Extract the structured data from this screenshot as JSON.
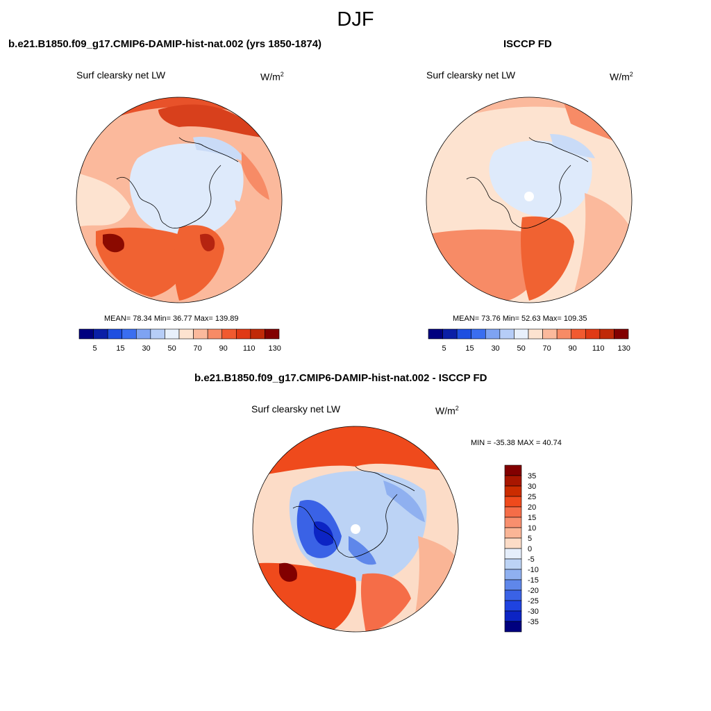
{
  "season": "DJF",
  "panels": [
    {
      "title": "b.e21.B1850.f09_g17.CMIP6-DAMIP-hist-nat.002 (yrs 1850-1874)",
      "variable": "Surf clearsky net LW",
      "units_base": "W/m",
      "units_sup": "2",
      "stats": "MEAN=  78.34  Min=  36.77  Max= 139.89"
    },
    {
      "title": "ISCCP FD",
      "variable": "Surf clearsky net LW",
      "units_base": "W/m",
      "units_sup": "2",
      "stats": "MEAN=  73.76  Min=  52.63  Max= 109.35"
    }
  ],
  "diff_panel": {
    "title": "b.e21.B1850.f09_g17.CMIP6-DAMIP-hist-nat.002 - ISCCP FD",
    "variable": "Surf clearsky net LW",
    "units_base": "W/m",
    "units_sup": "2",
    "stats": "MIN = -35.38 MAX =  40.74"
  },
  "abs_colorbar": {
    "colors": [
      "#00007f",
      "#0a1fa6",
      "#1e4fe0",
      "#3a6ef0",
      "#7ea3f2",
      "#b6cdf7",
      "#e8f0fb",
      "#fde3d0",
      "#fbb99c",
      "#f78b66",
      "#f15a30",
      "#e03a15",
      "#c02a08",
      "#820000"
    ],
    "labels": [
      "5",
      "15",
      "30",
      "50",
      "70",
      "90",
      "110",
      "130"
    ]
  },
  "diff_colorbar": {
    "colors": [
      "#820000",
      "#a81600",
      "#cb2c00",
      "#ef4a1c",
      "#f56d48",
      "#f88f6e",
      "#fab596",
      "#fcdcc7",
      "#e5eefb",
      "#bcd3f5",
      "#8fb0f0",
      "#5f87ea",
      "#3a62e6",
      "#1f43e0",
      "#0c24c4",
      "#00007f"
    ],
    "labels": [
      "35",
      "30",
      "25",
      "20",
      "15",
      "10",
      "5",
      "0",
      "-5",
      "-10",
      "-15",
      "-20",
      "-25",
      "-30",
      "-35"
    ]
  }
}
